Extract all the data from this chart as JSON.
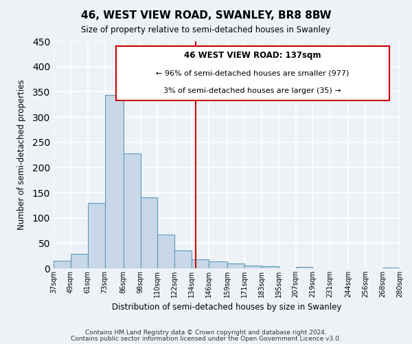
{
  "title": "46, WEST VIEW ROAD, SWANLEY, BR8 8BW",
  "subtitle": "Size of property relative to semi-detached houses in Swanley",
  "xlabel": "Distribution of semi-detached houses by size in Swanley",
  "ylabel": "Number of semi-detached properties",
  "footer1": "Contains HM Land Registry data © Crown copyright and database right 2024.",
  "footer2": "Contains public sector information licensed under the Open Government Licence v3.0.",
  "bar_edges": [
    37,
    49,
    61,
    73,
    86,
    98,
    110,
    122,
    134,
    146,
    159,
    171,
    183,
    195,
    207,
    219,
    231,
    244,
    256,
    268,
    280
  ],
  "bar_heights": [
    15,
    28,
    130,
    343,
    228,
    141,
    67,
    35,
    18,
    13,
    10,
    5,
    4,
    0,
    3,
    0,
    0,
    0,
    0,
    2
  ],
  "bar_color": "#c8d8e8",
  "bar_edge_color": "#5b9ab8",
  "property_size": 137,
  "vline_color": "#cc0000",
  "annotation_box_edge": "#cc0000",
  "annotation_title": "46 WEST VIEW ROAD: 137sqm",
  "annotation_line1": "← 96% of semi-detached houses are smaller (977)",
  "annotation_line2": "3% of semi-detached houses are larger (35) →",
  "ylim": [
    0,
    450
  ],
  "yticks": [
    0,
    50,
    100,
    150,
    200,
    250,
    300,
    350,
    400,
    450
  ],
  "xtick_labels": [
    "37sqm",
    "49sqm",
    "61sqm",
    "73sqm",
    "86sqm",
    "98sqm",
    "110sqm",
    "122sqm",
    "134sqm",
    "146sqm",
    "159sqm",
    "171sqm",
    "183sqm",
    "195sqm",
    "207sqm",
    "219sqm",
    "231sqm",
    "244sqm",
    "256sqm",
    "268sqm",
    "280sqm"
  ],
  "background_color": "#edf2f7",
  "plot_background": "#edf2f7",
  "grid_color": "#ffffff"
}
